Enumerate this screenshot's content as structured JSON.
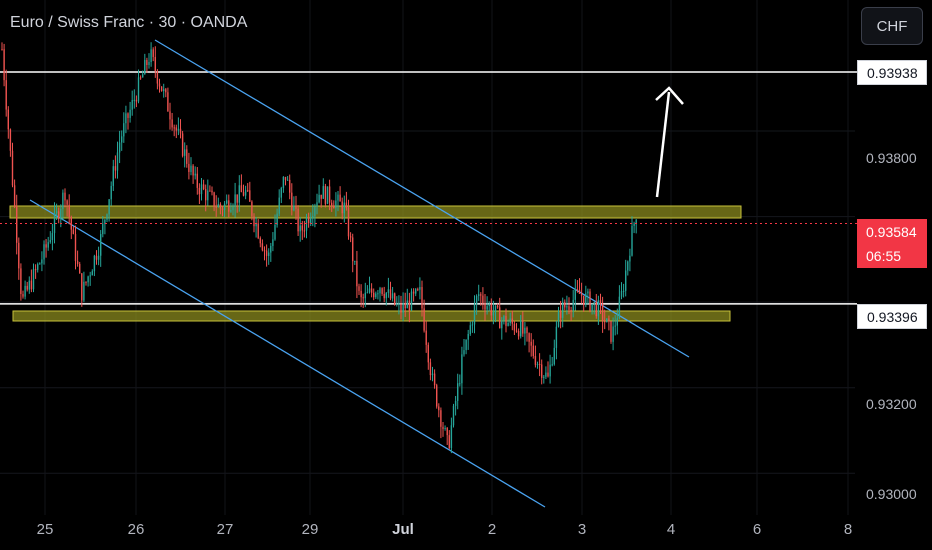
{
  "header": {
    "title": "Euro / Swiss Franc · 30 · OANDA",
    "currency_button": "CHF"
  },
  "chart_data": {
    "type": "candlestick",
    "symbol": "EURCHF",
    "interval": "30",
    "source": "OANDA",
    "ylim": [
      0.93,
      0.9408
    ],
    "y_ticks": [
      "0.93800",
      "0.93200",
      "0.93000"
    ],
    "x_ticks": [
      "25",
      "26",
      "27",
      "29",
      "Jul",
      "2",
      "3",
      "4",
      "6",
      "8"
    ],
    "price_labels": {
      "resistance_top": "0.93938",
      "current_price": "0.93584",
      "countdown": "06:55",
      "support": "0.93396"
    },
    "horizontal_lines": [
      0.93938,
      0.93396
    ],
    "zones": [
      {
        "name": "resistance-zone",
        "price": 0.93624
      },
      {
        "name": "support-zone",
        "price": 0.93408
      }
    ],
    "channel": {
      "upper": {
        "start_price": 0.9405,
        "end_price": 0.933
      },
      "lower": {
        "start_price": 0.9367,
        "end_price": 0.9298
      }
    },
    "arrow_direction": "up",
    "colors": {
      "up": "#26a69a",
      "down": "#ef5350",
      "channel": "#4aa3f0",
      "zone": "#c7c23a",
      "current": "#f23645"
    }
  }
}
